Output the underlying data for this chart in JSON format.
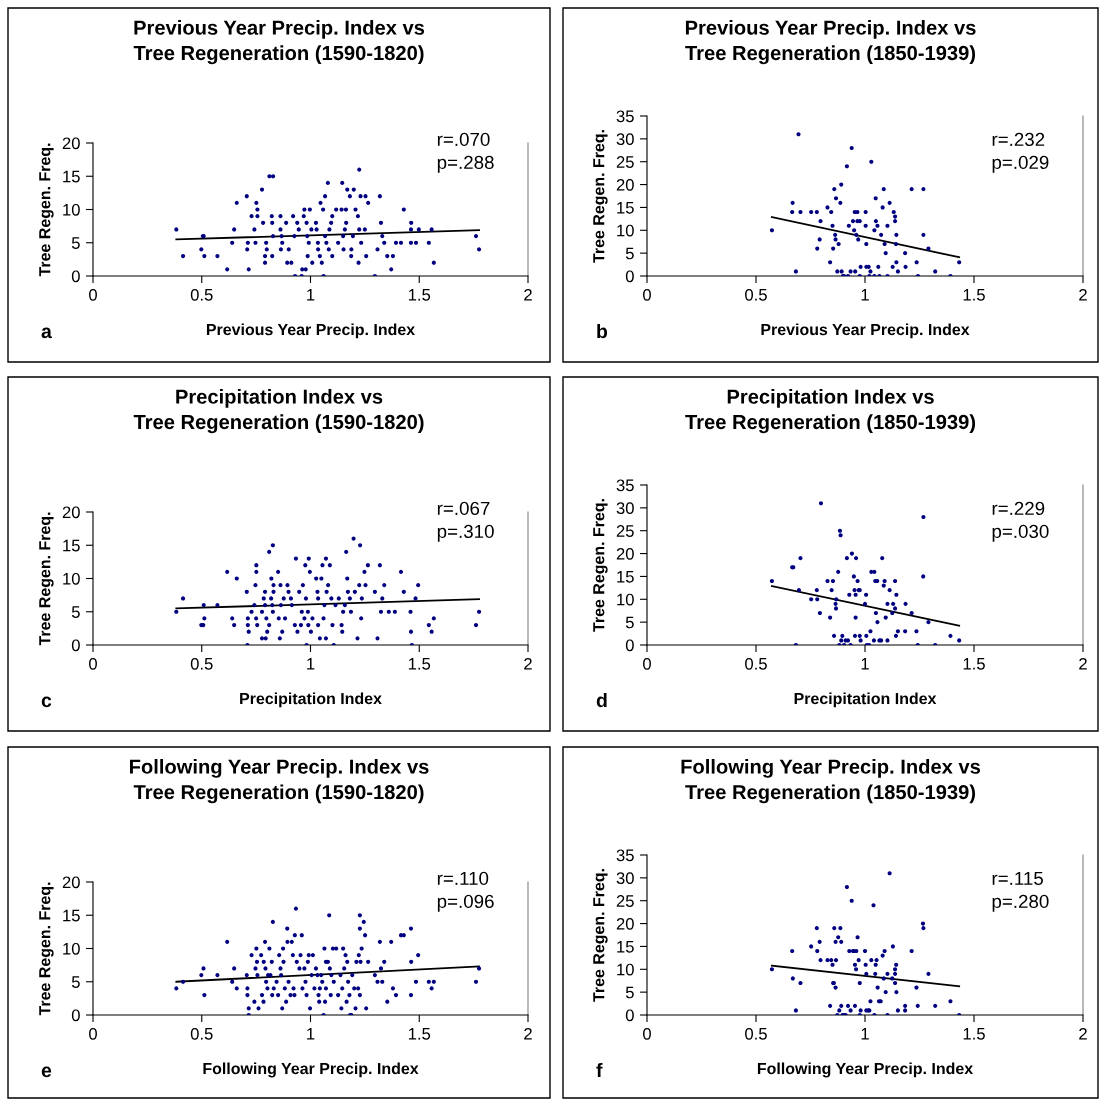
{
  "chart_data": [
    {
      "type": "scatter",
      "title": "Previous Year Precip. Index vs\nTree Regeneration (1590-1820)",
      "xlabel": "Previous Year Precip. Index",
      "ylabel": "Tree Regen. Freq.",
      "annotations": [
        "a",
        "r=.070",
        "p=.288"
      ],
      "xlim": [
        0,
        2
      ],
      "xticks": [
        0,
        0.5,
        1,
        1.5,
        2
      ],
      "ylim": [
        0,
        20
      ],
      "yticks": [
        0,
        5,
        10,
        15,
        20
      ],
      "grid": false,
      "marker": "circle",
      "series": [
        {
          "type": "scatter",
          "color": "#000080",
          "x": [
            0.383,
            0.414,
            0.498,
            0.509,
            0.505,
            0.512,
            0.572,
            0.617,
            0.64,
            0.649,
            0.661,
            0.707,
            0.709,
            0.712,
            0.716,
            0.729,
            0.747,
            0.742,
            0.751,
            0.756,
            0.756,
            0.782,
            0.777,
            0.791,
            0.791,
            0.796,
            0.799,
            0.811,
            0.828,
            0.822,
            0.824,
            0.824,
            0.828,
            0.862,
            0.862,
            0.864,
            0.867,
            0.87,
            0.888,
            0.893,
            0.9,
            0.912,
            0.92,
            0.926,
            0.929,
            0.939,
            0.946,
            0.959,
            0.962,
            0.969,
            0.972,
            0.978,
            0.982,
            0.985,
            0.987,
            0.992,
            0.997,
            1.004,
            1.008,
            1.025,
            1.034,
            1.028,
            1.035,
            1.043,
            1.046,
            1.052,
            1.06,
            1.058,
            1.067,
            1.067,
            1.073,
            1.08,
            1.084,
            1.087,
            1.095,
            1.1,
            1.1,
            1.118,
            1.127,
            1.143,
            1.146,
            1.15,
            1.152,
            1.158,
            1.163,
            1.164,
            1.169,
            1.181,
            1.187,
            1.188,
            1.195,
            1.199,
            1.207,
            1.218,
            1.221,
            1.224,
            1.224,
            1.23,
            1.233,
            1.25,
            1.253,
            1.256,
            1.265,
            1.296,
            1.308,
            1.319,
            1.324,
            1.33,
            1.339,
            1.353,
            1.371,
            1.379,
            1.393,
            1.416,
            1.429,
            1.462,
            1.463,
            1.462,
            1.485,
            1.498,
            1.544,
            1.557,
            1.567,
            1.761,
            1.775
          ],
          "values": [
            7,
            3,
            4,
            6,
            6,
            3,
            3,
            1,
            5,
            7,
            11,
            12,
            4,
            5,
            1,
            9,
            5,
            7,
            11,
            10,
            9,
            8,
            13,
            3,
            2,
            5,
            4,
            15,
            15,
            9,
            8,
            3,
            6,
            9,
            7,
            4,
            6,
            5,
            8,
            2,
            4,
            2,
            9,
            6,
            0,
            8,
            7,
            0,
            1,
            9,
            10,
            1,
            8,
            6,
            3,
            5,
            10,
            7,
            2,
            8,
            5,
            7,
            4,
            3,
            11,
            2,
            0,
            10,
            12,
            6,
            5,
            14,
            4,
            7,
            8,
            9,
            3,
            10,
            5,
            10,
            14,
            6,
            4,
            7,
            10,
            8,
            13,
            12,
            3,
            4,
            6,
            13,
            10,
            9,
            2,
            16,
            7,
            12,
            5,
            7,
            12,
            3,
            11,
            0,
            4,
            12,
            8,
            6,
            5,
            3,
            1,
            3,
            5,
            5,
            10,
            7,
            8,
            5,
            5,
            7,
            5,
            7,
            2,
            6,
            4
          ]
        },
        {
          "type": "line",
          "color": "#000000",
          "x": [
            0.383,
            1.775
          ],
          "values": [
            5.5,
            6.9
          ],
          "marker": "none"
        }
      ]
    },
    {
      "type": "scatter",
      "title": "Previous Year Precip. Index vs\nTree Regeneration (1850-1939)",
      "xlabel": "Previous Year Precip. Index",
      "ylabel": "Tree Regen. Freq.",
      "annotations": [
        "b",
        "r=.232",
        "p=.029"
      ],
      "xlim": [
        0,
        2
      ],
      "xticks": [
        0,
        0.5,
        1,
        1.5,
        2
      ],
      "ylim": [
        0,
        35
      ],
      "yticks": [
        0,
        5,
        10,
        15,
        20,
        25,
        30,
        35
      ],
      "grid": false,
      "marker": "circle",
      "series": [
        {
          "type": "scatter",
          "color": "#000080",
          "x": [
            0.573,
            0.666,
            0.668,
            0.683,
            0.695,
            0.704,
            0.753,
            0.779,
            0.781,
            0.792,
            0.796,
            0.828,
            0.84,
            0.845,
            0.851,
            0.854,
            0.859,
            0.863,
            0.865,
            0.867,
            0.873,
            0.879,
            0.887,
            0.891,
            0.893,
            0.899,
            0.904,
            0.917,
            0.922,
            0.926,
            0.934,
            0.939,
            0.945,
            0.95,
            0.953,
            0.955,
            0.96,
            0.965,
            0.965,
            0.969,
            0.976,
            0.976,
            0.98,
            1.003,
            1.003,
            1.006,
            1.006,
            1.017,
            1.02,
            1.025,
            1.029,
            1.043,
            1.043,
            1.049,
            1.05,
            1.057,
            1.061,
            1.066,
            1.074,
            1.081,
            1.086,
            1.09,
            1.095,
            1.103,
            1.103,
            1.113,
            1.127,
            1.132,
            1.138,
            1.138,
            1.142,
            1.144,
            1.144,
            1.151,
            1.184,
            1.186,
            1.214,
            1.237,
            1.243,
            1.268,
            1.268,
            1.291,
            1.322,
            1.392,
            1.432
          ],
          "values": [
            10,
            14,
            16,
            1,
            31,
            14,
            14,
            14,
            6,
            8,
            12,
            15,
            3,
            14,
            11,
            6,
            19,
            9,
            8,
            17,
            1,
            7,
            16,
            20,
            1,
            0,
            0,
            24,
            0,
            11,
            1,
            28,
            12,
            10,
            14,
            1,
            9,
            14,
            12,
            8,
            12,
            0,
            2,
            14,
            11,
            7,
            2,
            2,
            0,
            1,
            25,
            0,
            10,
            17,
            12,
            11,
            2,
            0,
            9,
            15,
            19,
            7,
            5,
            11,
            0,
            16,
            2,
            14,
            13,
            12,
            7,
            3,
            9,
            1,
            5,
            2,
            19,
            3,
            0,
            19,
            9,
            6,
            1,
            0,
            3
          ]
        },
        {
          "type": "line",
          "color": "#000000",
          "x": [
            0.573,
            1.432
          ],
          "values": [
            12.9,
            4.1
          ],
          "marker": "none"
        }
      ]
    },
    {
      "type": "scatter",
      "title": "Precipitation Index vs\nTree Regeneration (1590-1820)",
      "xlabel": "Precipitation Index",
      "ylabel": "Tree Regen. Freq.",
      "annotations": [
        "c",
        "r=.067",
        "p=.310"
      ],
      "xlim": [
        0,
        2
      ],
      "xticks": [
        0,
        0.5,
        1,
        1.5,
        2
      ],
      "ylim": [
        0,
        20
      ],
      "yticks": [
        0,
        5,
        10,
        15,
        20
      ],
      "grid": false,
      "marker": "circle",
      "series": [
        {
          "type": "scatter",
          "color": "#000080",
          "x": [
            0.383,
            0.414,
            0.498,
            0.507,
            0.509,
            0.512,
            0.572,
            0.617,
            0.64,
            0.649,
            0.661,
            0.707,
            0.71,
            0.712,
            0.712,
            0.716,
            0.729,
            0.742,
            0.747,
            0.751,
            0.751,
            0.75,
            0.755,
            0.777,
            0.777,
            0.785,
            0.791,
            0.791,
            0.794,
            0.797,
            0.801,
            0.81,
            0.81,
            0.819,
            0.82,
            0.824,
            0.827,
            0.827,
            0.83,
            0.83,
            0.851,
            0.854,
            0.859,
            0.862,
            0.864,
            0.87,
            0.877,
            0.883,
            0.894,
            0.899,
            0.91,
            0.914,
            0.928,
            0.933,
            0.94,
            0.948,
            0.956,
            0.96,
            0.965,
            0.972,
            0.976,
            0.979,
            0.982,
            0.988,
            0.99,
            0.992,
            0.997,
            1.002,
            1.009,
            1.026,
            1.032,
            1.035,
            1.035,
            1.043,
            1.05,
            1.055,
            1.06,
            1.064,
            1.071,
            1.071,
            1.074,
            1.081,
            1.089,
            1.096,
            1.101,
            1.107,
            1.115,
            1.13,
            1.143,
            1.146,
            1.15,
            1.158,
            1.164,
            1.169,
            1.172,
            1.181,
            1.186,
            1.198,
            1.204,
            1.216,
            1.224,
            1.228,
            1.233,
            1.236,
            1.248,
            1.253,
            1.264,
            1.296,
            1.308,
            1.319,
            1.324,
            1.33,
            1.339,
            1.36,
            1.388,
            1.416,
            1.429,
            1.46,
            1.462,
            1.466,
            1.483,
            1.495,
            1.544,
            1.557,
            1.567,
            1.761,
            1.775
          ],
          "values": [
            5,
            7,
            3,
            3,
            6,
            4,
            6,
            11,
            4,
            3,
            10,
            8,
            0,
            4,
            3,
            2,
            5,
            6,
            9,
            11,
            12,
            4,
            3,
            1,
            5,
            7,
            8,
            6,
            1,
            4,
            2,
            14,
            3,
            7,
            10,
            6,
            5,
            15,
            9,
            8,
            11,
            4,
            1,
            9,
            6,
            2,
            7,
            4,
            9,
            8,
            7,
            6,
            3,
            13,
            2,
            8,
            3,
            5,
            9,
            4,
            12,
            7,
            0,
            5,
            3,
            13,
            11,
            2,
            4,
            10,
            8,
            7,
            3,
            1,
            10,
            12,
            4,
            6,
            13,
            1,
            8,
            9,
            12,
            7,
            3,
            0,
            6,
            7,
            3,
            2,
            5,
            6,
            14,
            10,
            8,
            7,
            5,
            16,
            8,
            1,
            9,
            15,
            4,
            7,
            11,
            9,
            12,
            8,
            1,
            12,
            5,
            7,
            9,
            5,
            5,
            11,
            8,
            5,
            2,
            0,
            7,
            9,
            3,
            2,
            4,
            3,
            5
          ]
        },
        {
          "type": "line",
          "color": "#000000",
          "x": [
            0.383,
            1.775
          ],
          "values": [
            5.5,
            6.9
          ],
          "marker": "none"
        }
      ]
    },
    {
      "type": "scatter",
      "title": "Precipitation Index vs\nTree Regeneration (1850-1939)",
      "xlabel": "Precipitation Index",
      "ylabel": "Tree Regen. Freq.",
      "annotations": [
        "d",
        "r=.229",
        "p=.030"
      ],
      "xlim": [
        0,
        2
      ],
      "xticks": [
        0,
        0.5,
        1,
        1.5,
        2
      ],
      "ylim": [
        0,
        35
      ],
      "yticks": [
        0,
        5,
        10,
        15,
        20,
        25,
        30,
        35
      ],
      "grid": false,
      "marker": "circle",
      "series": [
        {
          "type": "scatter",
          "color": "#000080",
          "x": [
            0.573,
            0.666,
            0.671,
            0.683,
            0.697,
            0.704,
            0.753,
            0.779,
            0.781,
            0.793,
            0.798,
            0.828,
            0.84,
            0.847,
            0.853,
            0.858,
            0.865,
            0.867,
            0.868,
            0.877,
            0.882,
            0.885,
            0.888,
            0.891,
            0.896,
            0.904,
            0.911,
            0.917,
            0.922,
            0.928,
            0.934,
            0.94,
            0.949,
            0.952,
            0.954,
            0.957,
            0.957,
            0.959,
            0.966,
            0.971,
            0.976,
            0.976,
            0.98,
            1.0,
            1.005,
            1.006,
            1.008,
            1.019,
            1.025,
            1.029,
            1.041,
            1.043,
            1.047,
            1.05,
            1.056,
            1.057,
            1.066,
            1.074,
            1.079,
            1.086,
            1.09,
            1.095,
            1.103,
            1.103,
            1.113,
            1.125,
            1.129,
            1.138,
            1.138,
            1.144,
            1.142,
            1.151,
            1.184,
            1.186,
            1.214,
            1.236,
            1.242,
            1.268,
            1.267,
            1.291,
            1.322,
            1.392,
            1.432
          ],
          "values": [
            14,
            17,
            17,
            0,
            12,
            19,
            10,
            12,
            10,
            7,
            31,
            14,
            6,
            12,
            14,
            2,
            9,
            8,
            10,
            16,
            0,
            25,
            24,
            1,
            2,
            0,
            1,
            19,
            1,
            11,
            0,
            20,
            15,
            12,
            2,
            11,
            6,
            19,
            14,
            12,
            12,
            2,
            1,
            9,
            11,
            2,
            0,
            0,
            3,
            16,
            1,
            16,
            14,
            7,
            14,
            5,
            1,
            1,
            19,
            13,
            14,
            6,
            9,
            1,
            12,
            7,
            9,
            14,
            8,
            11,
            2,
            3,
            3,
            9,
            7,
            3,
            0,
            28,
            15,
            5,
            0,
            2,
            1
          ]
        },
        {
          "type": "line",
          "color": "#000000",
          "x": [
            0.573,
            1.432
          ],
          "values": [
            12.9,
            4.2
          ],
          "marker": "none"
        }
      ]
    },
    {
      "type": "scatter",
      "title": "Following Year Precip. Index vs\nTree Regeneration (1590-1820)",
      "xlabel": "Following Year Precip. Index",
      "ylabel": "Tree Regen. Freq.",
      "annotations": [
        "e",
        "r=.110",
        "p=.096"
      ],
      "xlim": [
        0,
        2
      ],
      "xticks": [
        0,
        0.5,
        1,
        1.5,
        2
      ],
      "ylim": [
        0,
        20
      ],
      "yticks": [
        0,
        5,
        10,
        15,
        20
      ],
      "grid": false,
      "marker": "circle",
      "series": [
        {
          "type": "scatter",
          "color": "#000080",
          "x": [
            0.383,
            0.414,
            0.498,
            0.508,
            0.512,
            0.572,
            0.617,
            0.64,
            0.649,
            0.661,
            0.707,
            0.71,
            0.71,
            0.716,
            0.716,
            0.729,
            0.742,
            0.747,
            0.751,
            0.754,
            0.761,
            0.756,
            0.773,
            0.777,
            0.784,
            0.785,
            0.791,
            0.793,
            0.796,
            0.802,
            0.805,
            0.811,
            0.816,
            0.822,
            0.824,
            0.827,
            0.831,
            0.844,
            0.851,
            0.856,
            0.862,
            0.865,
            0.87,
            0.874,
            0.876,
            0.882,
            0.888,
            0.893,
            0.894,
            0.899,
            0.908,
            0.914,
            0.919,
            0.922,
            0.926,
            0.933,
            0.928,
            0.937,
            0.949,
            0.954,
            0.96,
            0.963,
            0.972,
            0.977,
            0.982,
            0.988,
            0.992,
            0.998,
            1.005,
            1.011,
            1.018,
            1.025,
            1.032,
            1.037,
            1.04,
            1.043,
            1.049,
            1.054,
            1.06,
            1.064,
            1.067,
            1.071,
            1.071,
            1.08,
            1.086,
            1.089,
            1.093,
            1.096,
            1.103,
            1.107,
            1.118,
            1.127,
            1.138,
            1.142,
            1.146,
            1.15,
            1.155,
            1.161,
            1.166,
            1.169,
            1.173,
            1.179,
            1.182,
            1.188,
            1.192,
            1.201,
            1.207,
            1.211,
            1.219,
            1.222,
            1.227,
            1.227,
            1.227,
            1.23,
            1.235,
            1.245,
            1.251,
            1.256,
            1.265,
            1.296,
            1.308,
            1.319,
            1.324,
            1.33,
            1.339,
            1.353,
            1.371,
            1.379,
            1.393,
            1.416,
            1.429,
            1.462,
            1.462,
            1.463,
            1.485,
            1.495,
            1.544,
            1.557,
            1.567,
            1.761,
            1.775
          ],
          "values": [
            4,
            5,
            6,
            7,
            3,
            6,
            11,
            5,
            7,
            4,
            6,
            4,
            3,
            0,
            1,
            9,
            2,
            7,
            10,
            8,
            1,
            6,
            9,
            3,
            2,
            8,
            11,
            7,
            5,
            4,
            6,
            10,
            6,
            8,
            3,
            14,
            4,
            5,
            3,
            9,
            7,
            6,
            1,
            10,
            8,
            4,
            2,
            13,
            11,
            5,
            3,
            11,
            9,
            4,
            3,
            16,
            12,
            8,
            7,
            9,
            12,
            4,
            7,
            5,
            3,
            8,
            9,
            1,
            6,
            9,
            4,
            7,
            6,
            3,
            2,
            4,
            6,
            5,
            0,
            10,
            2,
            4,
            8,
            8,
            15,
            7,
            3,
            6,
            10,
            5,
            10,
            3,
            6,
            1,
            4,
            10,
            7,
            9,
            2,
            8,
            5,
            3,
            0,
            0,
            6,
            4,
            1,
            8,
            4,
            9,
            15,
            13,
            3,
            8,
            10,
            14,
            12,
            1,
            8,
            6,
            5,
            11,
            7,
            5,
            8,
            2,
            11,
            4,
            3,
            12,
            12,
            13,
            3,
            8,
            5,
            9,
            5,
            4,
            5,
            5,
            7
          ]
        },
        {
          "type": "line",
          "color": "#000000",
          "x": [
            0.383,
            1.775
          ],
          "values": [
            5.0,
            7.3
          ],
          "marker": "none"
        }
      ]
    },
    {
      "type": "scatter",
      "title": "Following Year Precip. Index vs\nTree Regeneration (1850-1939)",
      "xlabel": "Following Year Precip. Index",
      "ylabel": "Tree Regen. Freq.",
      "annotations": [
        "f",
        "r=.115",
        "p=.280"
      ],
      "xlim": [
        0,
        2
      ],
      "xticks": [
        0,
        0.5,
        1,
        1.5,
        2
      ],
      "ylim": [
        0,
        35
      ],
      "yticks": [
        0,
        5,
        10,
        15,
        20,
        25,
        30,
        35
      ],
      "grid": false,
      "marker": "circle",
      "series": [
        {
          "type": "scatter",
          "color": "#000080",
          "x": [
            0.573,
            0.666,
            0.669,
            0.683,
            0.704,
            0.753,
            0.779,
            0.781,
            0.792,
            0.796,
            0.828,
            0.84,
            0.845,
            0.851,
            0.854,
            0.857,
            0.859,
            0.865,
            0.867,
            0.865,
            0.877,
            0.882,
            0.873,
            0.887,
            0.891,
            0.891,
            0.897,
            0.904,
            0.911,
            0.917,
            0.922,
            0.928,
            0.934,
            0.939,
            0.945,
            0.949,
            0.954,
            0.954,
            0.959,
            0.96,
            0.966,
            0.971,
            0.976,
            0.976,
            0.98,
            1.0,
            1.003,
            1.006,
            1.006,
            1.015,
            1.02,
            1.025,
            1.029,
            1.039,
            1.043,
            1.047,
            1.049,
            1.053,
            1.058,
            1.064,
            1.072,
            1.081,
            1.086,
            1.09,
            1.095,
            1.103,
            1.103,
            1.113,
            1.128,
            1.125,
            1.138,
            1.138,
            1.138,
            1.143,
            1.144,
            1.151,
            1.184,
            1.184,
            1.214,
            1.236,
            1.242,
            1.266,
            1.268,
            1.291,
            1.322,
            1.392,
            1.432
          ],
          "values": [
            10,
            14,
            8,
            1,
            7,
            15,
            19,
            14,
            16,
            12,
            12,
            2,
            12,
            11,
            7,
            7,
            19,
            6,
            12,
            16,
            17,
            1,
            0,
            19,
            16,
            2,
            0,
            0,
            0,
            28,
            2,
            14,
            1,
            25,
            14,
            14,
            11,
            2,
            10,
            14,
            17,
            12,
            7,
            0,
            1,
            14,
            11,
            9,
            1,
            1,
            1,
            3,
            12,
            24,
            0,
            9,
            11,
            12,
            6,
            3,
            3,
            13,
            8,
            14,
            5,
            9,
            0,
            31,
            15,
            8,
            9,
            10,
            7,
            11,
            5,
            1,
            2,
            1,
            14,
            6,
            2,
            20,
            19,
            9,
            2,
            3,
            0
          ]
        },
        {
          "type": "line",
          "color": "#000000",
          "x": [
            0.573,
            1.432
          ],
          "values": [
            10.8,
            6.3
          ],
          "marker": "none"
        }
      ]
    }
  ]
}
